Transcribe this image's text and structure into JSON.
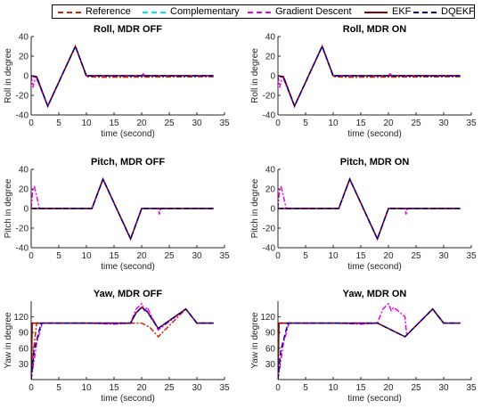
{
  "legend": {
    "items": [
      {
        "label": "Reference",
        "color": "#cc2200",
        "dash": "6,2,2,2"
      },
      {
        "label": "Complementary",
        "color": "#00e5ee",
        "dash": "6,3"
      },
      {
        "label": "Gradient Descent",
        "color": "#ee00ee",
        "dash": "6,2,2,2"
      },
      {
        "label": "EKF",
        "color": "#8b0000",
        "dash": ""
      },
      {
        "label": "DQEKF",
        "color": "#00008b",
        "dash": "6,3"
      }
    ]
  },
  "chart_data": [
    {
      "type": "line",
      "title": "Roll, MDR OFF",
      "xlabel": "time (second)",
      "ylabel": "Roll in degree",
      "xlim": [
        0,
        35
      ],
      "ylim": [
        -40,
        40
      ],
      "xticks": [
        0,
        5,
        10,
        15,
        20,
        25,
        30,
        35
      ],
      "yticks": [
        -40,
        -20,
        0,
        20,
        40
      ],
      "series": [
        {
          "name": "Reference",
          "x": [
            0,
            1,
            3,
            8,
            10,
            13,
            33
          ],
          "y": [
            0,
            -2,
            -31,
            30,
            -1,
            -1.5,
            -1
          ]
        },
        {
          "name": "Gradient Descent",
          "x": [
            0,
            0.3,
            0.6,
            1,
            3,
            8,
            10,
            13,
            20,
            20.3,
            20.6,
            33
          ],
          "y": [
            0,
            -12,
            -5,
            -3,
            -31,
            30,
            0,
            0,
            0,
            2,
            0,
            0
          ]
        },
        {
          "name": "EKF",
          "x": [
            0,
            1,
            3,
            8,
            10,
            33
          ],
          "y": [
            0,
            -1,
            -31,
            30,
            0,
            0
          ]
        },
        {
          "name": "DQEKF",
          "x": [
            0,
            1,
            3,
            8,
            10,
            33
          ],
          "y": [
            0,
            -1,
            -31,
            30,
            0,
            0
          ]
        }
      ]
    },
    {
      "type": "line",
      "title": "Roll, MDR ON",
      "xlabel": "time (second)",
      "ylabel": "Roll in degree",
      "xlim": [
        0,
        35
      ],
      "ylim": [
        -40,
        40
      ],
      "xticks": [
        0,
        5,
        10,
        15,
        20,
        25,
        30,
        35
      ],
      "yticks": [
        -40,
        -20,
        0,
        20,
        40
      ],
      "series": [
        {
          "name": "Reference",
          "x": [
            0,
            1,
            3,
            8,
            10,
            13,
            33
          ],
          "y": [
            0,
            -2,
            -31,
            30,
            -1,
            -1.5,
            -1
          ]
        },
        {
          "name": "Gradient Descent",
          "x": [
            0,
            0.3,
            0.6,
            1,
            3,
            8,
            10,
            13,
            20,
            20.3,
            20.6,
            33
          ],
          "y": [
            0,
            -12,
            -5,
            -3,
            -31,
            30,
            0,
            0,
            0,
            2,
            0,
            0
          ]
        },
        {
          "name": "EKF",
          "x": [
            0,
            1,
            3,
            8,
            10,
            33
          ],
          "y": [
            0,
            -1,
            -31,
            30,
            0,
            0
          ]
        },
        {
          "name": "DQEKF",
          "x": [
            0,
            1,
            3,
            8,
            10,
            33
          ],
          "y": [
            0,
            -1,
            -31,
            30,
            0,
            0
          ]
        }
      ]
    },
    {
      "type": "line",
      "title": "Pitch, MDR OFF",
      "xlabel": "time (second)",
      "ylabel": "Pitch in degree",
      "xlim": [
        0,
        35
      ],
      "ylim": [
        -40,
        40
      ],
      "xticks": [
        0,
        5,
        10,
        15,
        20,
        25,
        30,
        35
      ],
      "yticks": [
        -40,
        -20,
        0,
        20,
        40
      ],
      "series": [
        {
          "name": "Reference",
          "x": [
            0,
            10,
            11,
            13,
            18,
            20,
            33
          ],
          "y": [
            0,
            0,
            0,
            30,
            -31,
            0,
            0
          ]
        },
        {
          "name": "Gradient Descent",
          "x": [
            0,
            0.3,
            0.6,
            1.1,
            1.5,
            10,
            11,
            13,
            18,
            20,
            23,
            23.2,
            23.4,
            33
          ],
          "y": [
            0,
            20,
            22,
            10,
            0,
            0,
            0,
            30,
            -31,
            0,
            0,
            -6,
            0,
            0
          ]
        },
        {
          "name": "EKF",
          "x": [
            0,
            10,
            11,
            13,
            18,
            20,
            33
          ],
          "y": [
            0,
            0,
            0,
            30,
            -31,
            0,
            0
          ]
        },
        {
          "name": "DQEKF",
          "x": [
            0,
            10,
            11,
            13,
            18,
            20,
            33
          ],
          "y": [
            0,
            0,
            0,
            30,
            -31,
            0,
            0
          ]
        }
      ]
    },
    {
      "type": "line",
      "title": "Pitch, MDR ON",
      "xlabel": "time (second)",
      "ylabel": "Pitch in degree",
      "xlim": [
        0,
        35
      ],
      "ylim": [
        -40,
        40
      ],
      "xticks": [
        0,
        5,
        10,
        15,
        20,
        25,
        30,
        35
      ],
      "yticks": [
        -40,
        -20,
        0,
        20,
        40
      ],
      "series": [
        {
          "name": "Reference",
          "x": [
            0,
            10,
            11,
            13,
            18,
            20,
            33
          ],
          "y": [
            0,
            0,
            0,
            30,
            -31,
            0,
            0
          ]
        },
        {
          "name": "Gradient Descent",
          "x": [
            0,
            0.3,
            0.6,
            1.1,
            1.5,
            10,
            11,
            13,
            18,
            20,
            23,
            23.2,
            23.4,
            33
          ],
          "y": [
            0,
            20,
            22,
            10,
            0,
            0,
            0,
            30,
            -31,
            0,
            0,
            -6,
            0,
            0
          ]
        },
        {
          "name": "EKF",
          "x": [
            0,
            10,
            11,
            13,
            18,
            20,
            33
          ],
          "y": [
            0,
            0,
            0,
            30,
            -31,
            0,
            0
          ]
        },
        {
          "name": "DQEKF",
          "x": [
            0,
            10,
            11,
            13,
            18,
            20,
            33
          ],
          "y": [
            0,
            0,
            0,
            30,
            -31,
            0,
            0
          ]
        }
      ]
    },
    {
      "type": "line",
      "title": "Yaw, MDR OFF",
      "xlabel": "time (second)",
      "ylabel": "Yaw in degree",
      "xlim": [
        0,
        35
      ],
      "ylim": [
        0,
        150
      ],
      "xticks": [
        0,
        5,
        10,
        15,
        20,
        25,
        30,
        35
      ],
      "yticks": [
        30,
        60,
        90,
        120
      ],
      "series": [
        {
          "name": "Reference",
          "x": [
            0,
            0.4,
            1,
            18,
            20,
            21.5,
            23,
            28,
            30,
            33
          ],
          "y": [
            0,
            55,
            108,
            108,
            108,
            100,
            82,
            135,
            108,
            108
          ]
        },
        {
          "name": "Gradient Descent",
          "x": [
            0,
            1,
            2,
            10,
            15,
            18,
            19,
            20,
            20.5,
            21,
            23,
            28,
            30,
            33
          ],
          "y": [
            0,
            70,
            108,
            108,
            106,
            108,
            135,
            145,
            132,
            138,
            95,
            135,
            108,
            108
          ]
        },
        {
          "name": "EKF",
          "x": [
            0,
            0.2,
            1,
            18,
            19,
            20,
            21,
            23,
            28,
            30,
            33
          ],
          "y": [
            0,
            108,
            108,
            108,
            128,
            138,
            130,
            98,
            135,
            108,
            108
          ]
        },
        {
          "name": "DQEKF",
          "x": [
            0,
            0.5,
            1.8,
            18,
            19,
            20,
            21,
            23,
            28,
            30,
            33
          ],
          "y": [
            0,
            55,
            108,
            108,
            128,
            138,
            130,
            98,
            135,
            108,
            108
          ]
        }
      ]
    },
    {
      "type": "line",
      "title": "Yaw, MDR ON",
      "xlabel": "time (second)",
      "ylabel": "Yaw in degree",
      "xlim": [
        0,
        35
      ],
      "ylim": [
        0,
        150
      ],
      "xticks": [
        0,
        5,
        10,
        15,
        20,
        25,
        30,
        35
      ],
      "yticks": [
        30,
        60,
        90,
        120
      ],
      "series": [
        {
          "name": "Reference",
          "x": [
            0,
            1,
            18,
            23,
            28,
            30,
            33
          ],
          "y": [
            108,
            108,
            108,
            82,
            135,
            108,
            108
          ]
        },
        {
          "name": "Gradient Descent",
          "x": [
            0,
            1,
            2,
            10,
            15,
            18,
            19,
            20,
            20.5,
            21,
            23,
            23.3,
            28,
            30,
            33
          ],
          "y": [
            0,
            70,
            108,
            108,
            106,
            108,
            135,
            145,
            132,
            138,
            120,
            85,
            135,
            108,
            108
          ]
        },
        {
          "name": "EKF",
          "x": [
            0,
            0.2,
            18,
            23,
            28,
            30,
            33
          ],
          "y": [
            0,
            108,
            108,
            82,
            135,
            108,
            108
          ]
        },
        {
          "name": "DQEKF",
          "x": [
            0,
            0.5,
            1.8,
            18,
            23,
            28,
            30,
            33
          ],
          "y": [
            0,
            55,
            108,
            108,
            82,
            135,
            108,
            108
          ]
        }
      ]
    }
  ]
}
